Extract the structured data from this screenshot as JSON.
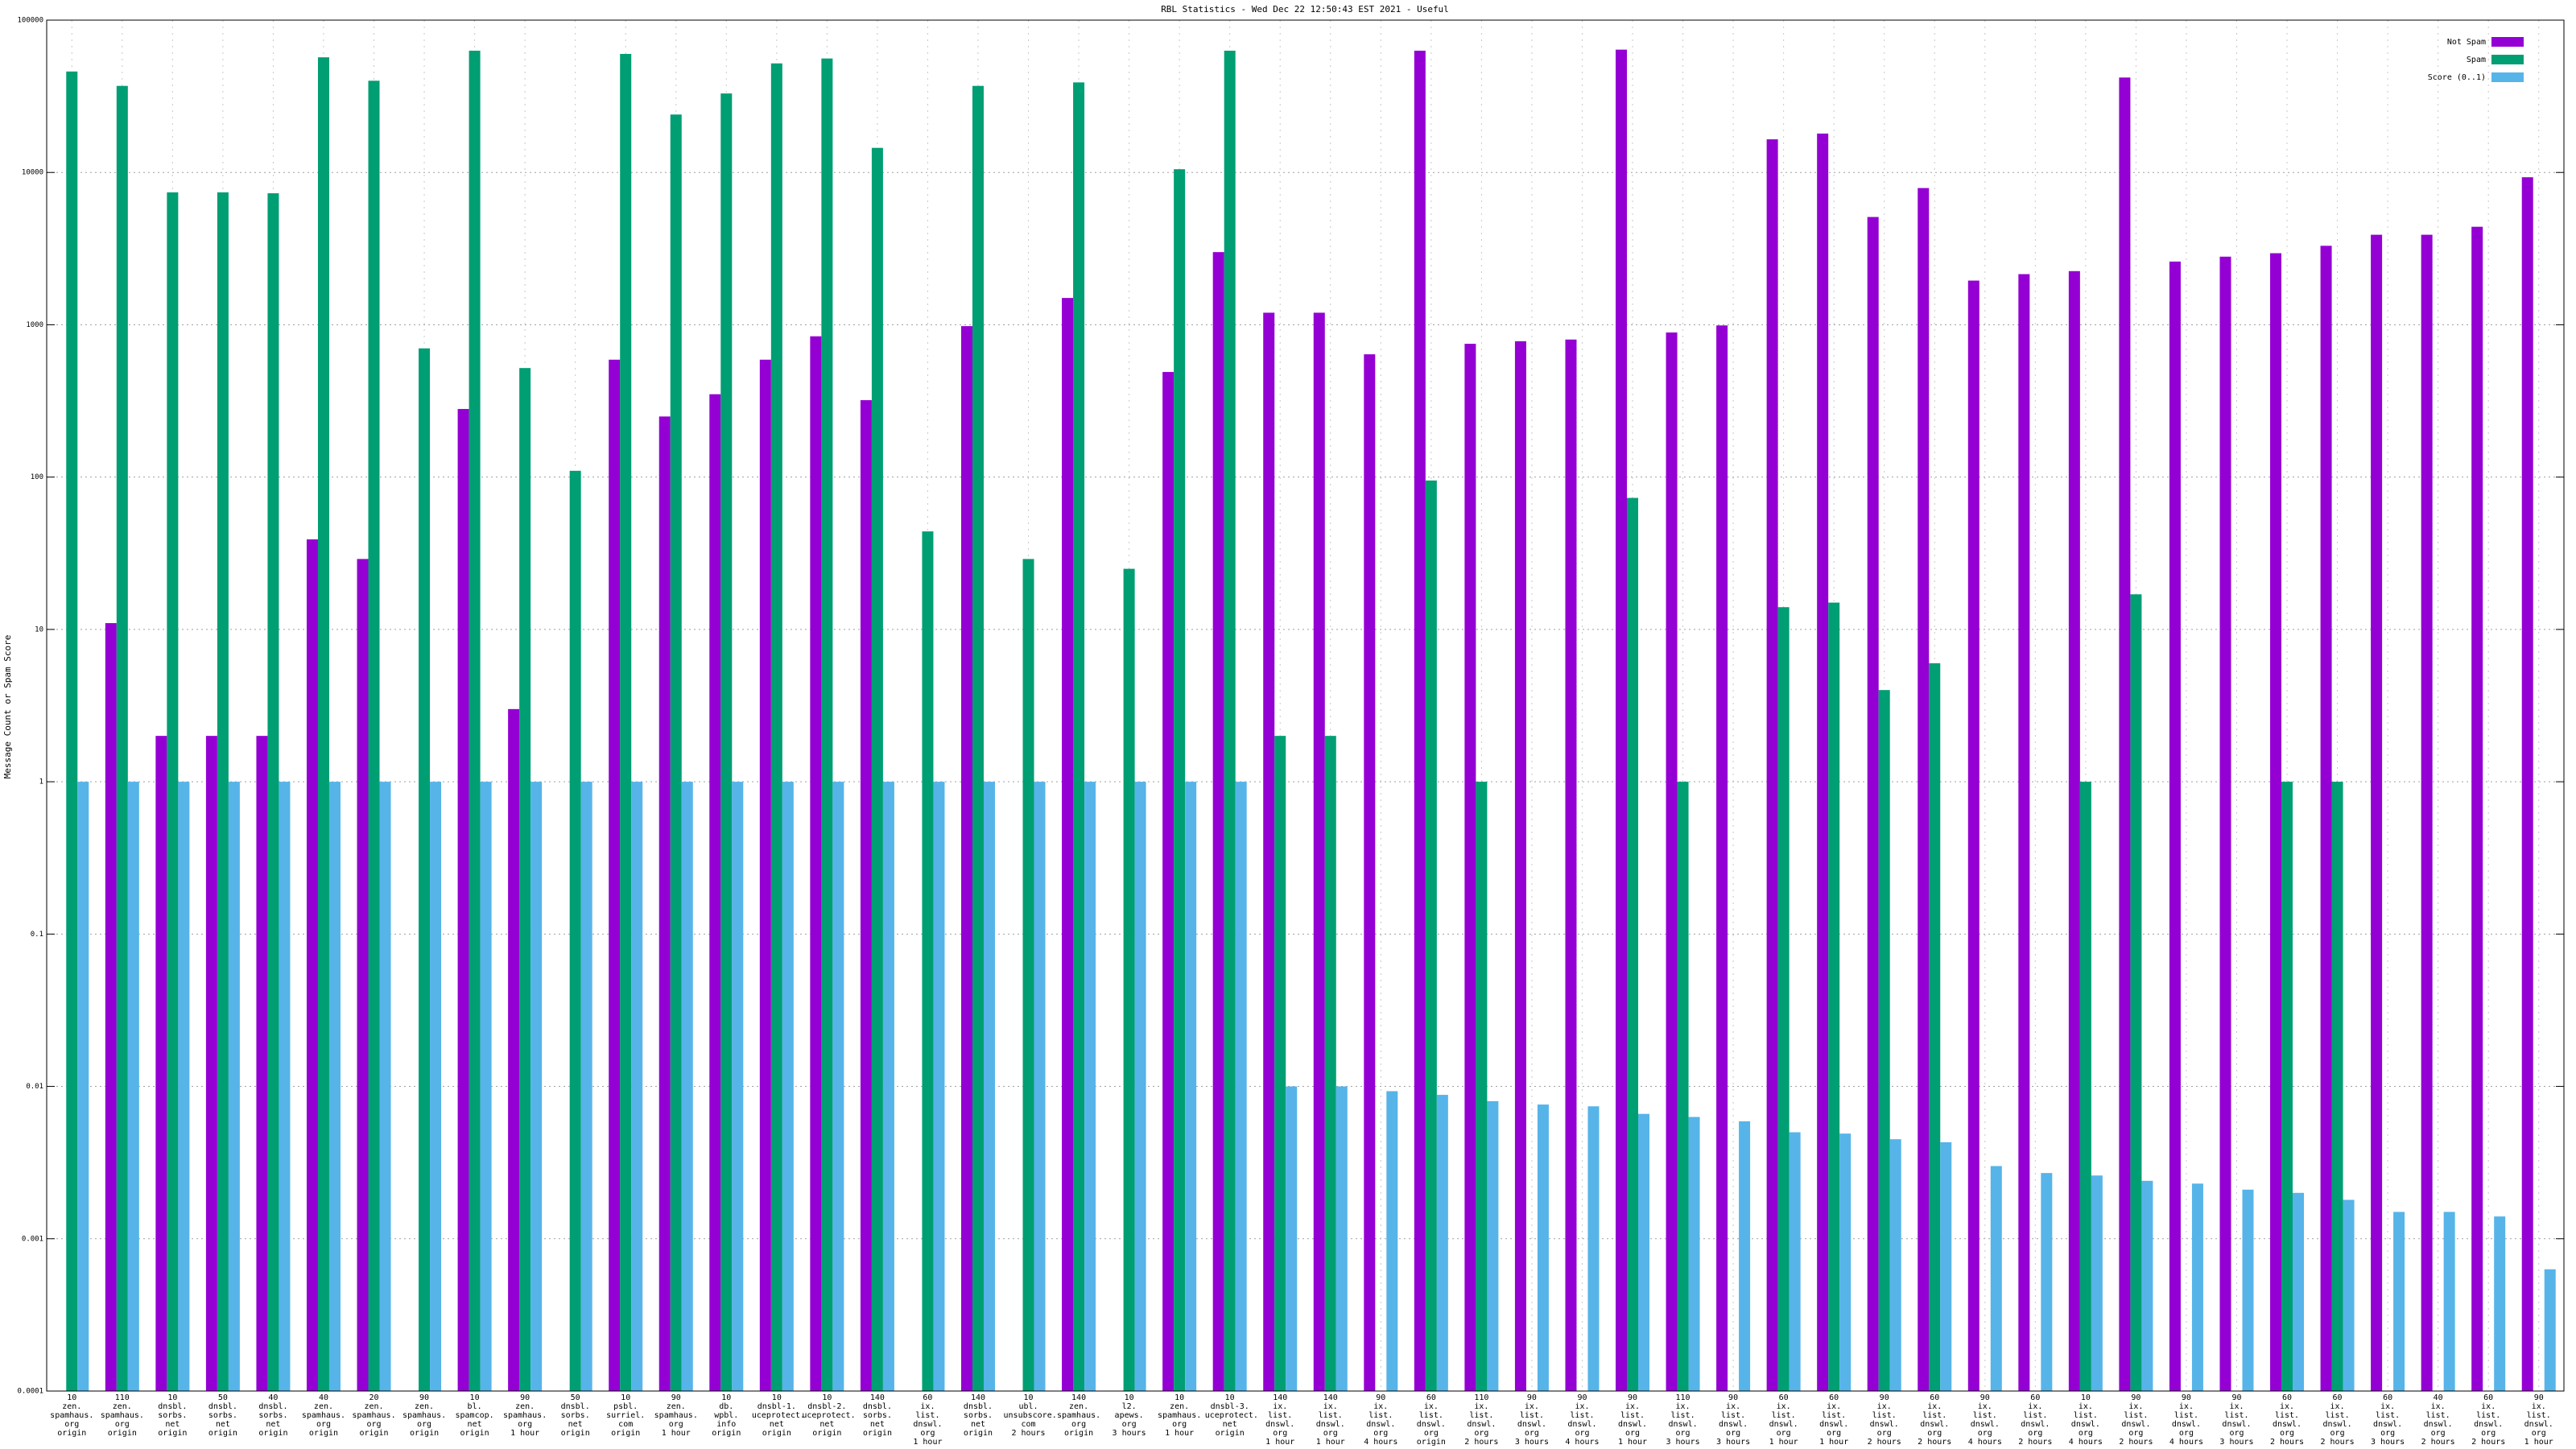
{
  "chart_data": {
    "type": "bar",
    "title": "RBL Statistics - Wed Dec 22 12:50:43 EST 2021 - Useful",
    "y_label": "Message Count or Spam Score",
    "log_y": true,
    "grid": true,
    "legend_position": "top-right",
    "ylim": [
      0.0001,
      100000
    ],
    "yticks": [
      0.0001,
      0.001,
      0.01,
      0.1,
      1,
      10,
      100,
      1000,
      10000,
      100000
    ],
    "categories": [
      "10\nzen.\nspamhaus.\norg\norigin",
      "110\nzen.\nspamhaus.\norg\norigin",
      "10\ndnsbl.\nsorbs.\nnet\norigin",
      "50\ndnsbl.\nsorbs.\nnet\norigin",
      "40\ndnsbl.\nsorbs.\nnet\norigin",
      "40\nzen.\nspamhaus.\norg\norigin",
      "20\nzen.\nspamhaus.\norg\norigin",
      "90\nzen.\nspamhaus.\norg\norigin",
      "10\nbl.\nspamcop.\nnet\norigin",
      "90\nzen.\nspamhaus.\norg\n1 hour",
      "50\ndnsbl.\nsorbs.\nnet\norigin",
      "10\npsbl.\nsurriel.\ncom\norigin",
      "90\nzen.\nspamhaus.\norg\n1 hour",
      "10\ndb.\nwpbl.\ninfo\norigin",
      "10\ndnsbl-1.\nuceprotect.\nnet\norigin",
      "10\ndnsbl-2.\nuceprotect.\nnet\norigin",
      "140\ndnsbl.\nsorbs.\nnet\norigin",
      "60\nix.\nlist.\ndnswl.\norg\n1 hour",
      "140\ndnsbl.\nsorbs.\nnet\norigin",
      "10\nubl.\nunsubscore.\ncom\n2 hours",
      "140\nzen.\nspamhaus.\norg\norigin",
      "10\nl2.\napews.\norg\n3 hours",
      "10\nzen.\nspamhaus.\norg\n1 hour",
      "10\ndnsbl-3.\nuceprotect.\nnet\norigin",
      "140\nix.\nlist.\ndnswl.\norg\n1 hour",
      "140\nix.\nlist.\ndnswl.\norg\n1 hour",
      "90\nix.\nlist.\ndnswl.\norg\n4 hours",
      "60\nix.\nlist.\ndnswl.\norg\norigin",
      "110\nix.\nlist.\ndnswl.\norg\n2 hours",
      "90\nix.\nlist.\ndnswl.\norg\n3 hours",
      "90\nix.\nlist.\ndnswl.\norg\n4 hours",
      "90\nix.\nlist.\ndnswl.\norg\n1 hour",
      "110\nix.\nlist.\ndnswl.\norg\n3 hours",
      "90\nix.\nlist.\ndnswl.\norg\n3 hours",
      "60\nix.\nlist.\ndnswl.\norg\n1 hour",
      "60\nix.\nlist.\ndnswl.\norg\n1 hour",
      "90\nix.\nlist.\ndnswl.\norg\n2 hours",
      "60\nix.\nlist.\ndnswl.\norg\n2 hours",
      "90\nix.\nlist.\ndnswl.\norg\n4 hours",
      "60\nix.\nlist.\ndnswl.\norg\n2 hours",
      "10\nix.\nlist.\ndnswl.\norg\n4 hours",
      "90\nix.\nlist.\ndnswl.\norg\n2 hours",
      "90\nix.\nlist.\ndnswl.\norg\n4 hours",
      "90\nix.\nlist.\ndnswl.\norg\n3 hours",
      "60\nix.\nlist.\ndnswl.\norg\n2 hours",
      "60\nix.\nlist.\ndnswl.\norg\n2 hours",
      "60\nix.\nlist.\ndnswl.\norg\n3 hours",
      "40\nix.\nlist.\ndnswl.\norg\n2 hours",
      "60\nix.\nlist.\ndnswl.\norg\n2 hours",
      "90\nix.\nlist.\ndnswl.\norg\n1 hour"
    ],
    "series": [
      {
        "name": "Not Spam",
        "color": "#9400d3",
        "values": [
          null,
          11,
          2,
          2,
          2,
          39,
          29,
          null,
          280,
          3,
          null,
          590,
          250,
          350,
          590,
          840,
          320,
          null,
          980,
          null,
          1500,
          null,
          490,
          3000,
          1200,
          1200,
          640,
          63000,
          750,
          780,
          800,
          64000,
          890,
          990,
          16500,
          18000,
          5100,
          7900,
          1950,
          2150,
          2250,
          42000,
          2600,
          2800,
          2950,
          3300,
          3900,
          3900,
          4400,
          9300
        ]
      },
      {
        "name": "Spam",
        "color": "#009e73",
        "values": [
          46000,
          37000,
          7400,
          7400,
          7300,
          57000,
          40000,
          700,
          63000,
          520,
          110,
          60000,
          24000,
          33000,
          52000,
          56000,
          14500,
          44,
          37000,
          29,
          39000,
          25,
          10500,
          63000,
          2,
          2,
          null,
          95,
          1,
          null,
          null,
          73,
          1,
          null,
          14,
          15,
          4,
          6,
          null,
          null,
          1,
          17,
          null,
          null,
          1,
          1,
          null,
          null,
          null,
          null
        ]
      },
      {
        "name": "Score (0..1)",
        "color": "#56b4e9",
        "values": [
          1,
          1,
          1,
          1,
          1,
          1,
          1,
          1,
          1,
          1,
          1,
          1,
          1,
          1,
          1,
          1,
          1,
          1,
          1,
          1,
          1,
          1,
          1,
          1,
          0.01,
          0.01,
          0.0093,
          0.0088,
          0.008,
          0.0076,
          0.0074,
          0.0066,
          0.0063,
          0.0059,
          0.005,
          0.0049,
          0.0045,
          0.0043,
          0.003,
          0.0027,
          0.0026,
          0.0024,
          0.0023,
          0.0021,
          0.002,
          0.0018,
          0.0015,
          0.0015,
          0.0014,
          0.00063
        ]
      }
    ]
  }
}
